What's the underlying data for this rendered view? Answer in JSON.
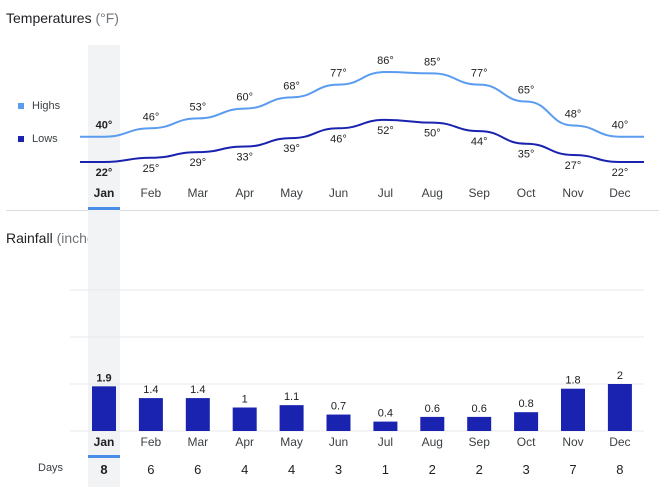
{
  "temperature": {
    "title": "Temperatures",
    "unit": "(°F)",
    "legend": [
      {
        "name": "Highs",
        "color": "#5a9cf0"
      },
      {
        "name": "Lows",
        "color": "#1a23b0"
      }
    ]
  },
  "rainfall": {
    "title": "Rainfall",
    "unit": "(inches)",
    "days_label": "Days"
  },
  "selected_month_index": 0,
  "chart_data": [
    {
      "type": "line",
      "title": "Temperatures (°F)",
      "categories": [
        "Jan",
        "Feb",
        "Mar",
        "Apr",
        "May",
        "Jun",
        "Jul",
        "Aug",
        "Sep",
        "Oct",
        "Nov",
        "Dec"
      ],
      "series": [
        {
          "name": "Highs",
          "color": "#5a9cf0",
          "values": [
            40,
            46,
            53,
            60,
            68,
            77,
            86,
            85,
            77,
            65,
            48,
            40
          ],
          "labels": [
            "40°",
            "46°",
            "53°",
            "60°",
            "68°",
            "77°",
            "86°",
            "85°",
            "77°",
            "65°",
            "48°",
            "40°"
          ]
        },
        {
          "name": "Lows",
          "color": "#1a23b0",
          "values": [
            22,
            25,
            29,
            33,
            39,
            46,
            52,
            50,
            44,
            35,
            27,
            22
          ],
          "labels": [
            "22°",
            "25°",
            "29°",
            "33°",
            "39°",
            "46°",
            "52°",
            "50°",
            "44°",
            "35°",
            "27°",
            "22°"
          ]
        }
      ],
      "legend": "left",
      "grid": false
    },
    {
      "type": "bar",
      "title": "Rainfall (inches)",
      "categories": [
        "Jan",
        "Feb",
        "Mar",
        "Apr",
        "May",
        "Jun",
        "Jul",
        "Aug",
        "Sep",
        "Oct",
        "Nov",
        "Dec"
      ],
      "values": [
        1.9,
        1.4,
        1.4,
        1,
        1.1,
        0.7,
        0.4,
        0.6,
        0.6,
        0.8,
        1.8,
        2
      ],
      "labels": [
        "1.9",
        "1.4",
        "1.4",
        "1",
        "1.1",
        "0.7",
        "0.4",
        "0.6",
        "0.6",
        "0.8",
        "1.8",
        "2"
      ],
      "bar_color": "#1a23b0",
      "ylim": [
        0,
        6
      ],
      "grid": true,
      "rainy_days": [
        8,
        6,
        6,
        4,
        4,
        3,
        1,
        2,
        2,
        3,
        7,
        8
      ]
    }
  ]
}
